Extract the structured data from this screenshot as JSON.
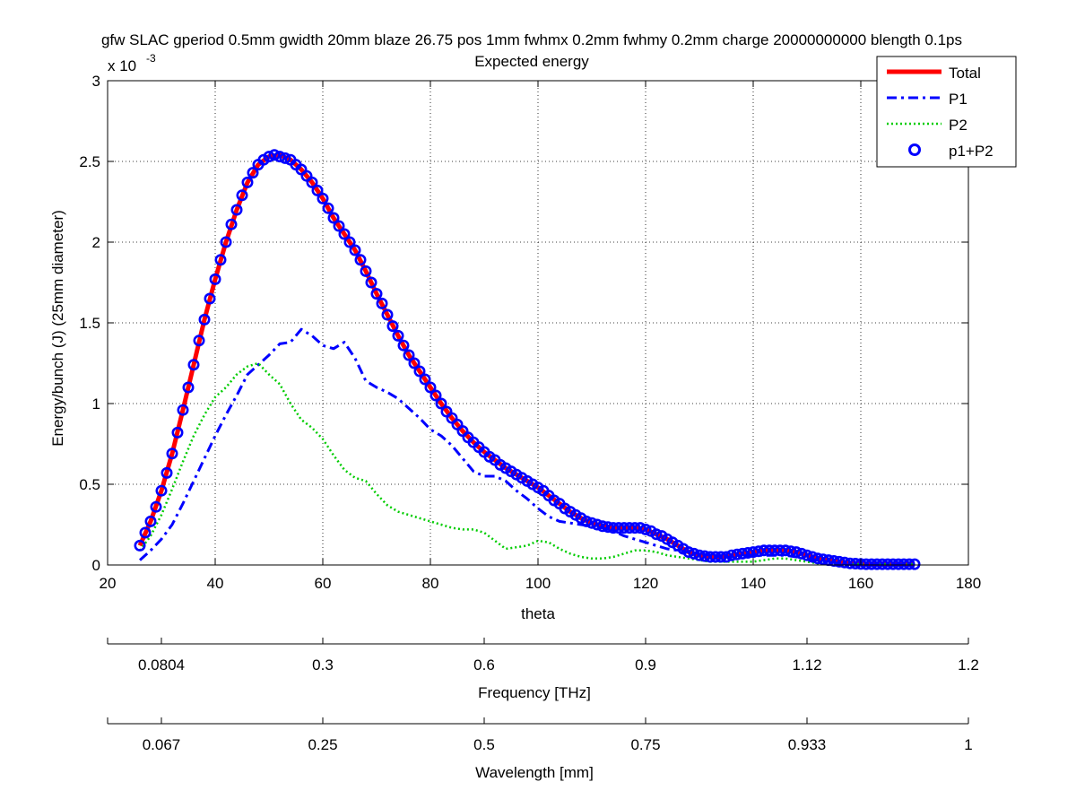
{
  "chart_data": {
    "type": "line",
    "title_line1": "gfw SLAC gperiod 0.5mm gwidth 20mm blaze 26.75 pos 1mm fwhmx 0.2mm fwhmy 0.2mm charge 20000000000 blength 0.1ps",
    "title_line2": "Expected energy",
    "xlabel": "theta",
    "ylabel": "Energy/bunch (J) (25mm diameter)",
    "y_multiplier_prefix": "x 10",
    "y_multiplier_exp": "-3",
    "xlim": [
      20,
      180
    ],
    "ylim": [
      0,
      3
    ],
    "y_scale_note": "values shown in units of 1e-3 J",
    "xticks": [
      20,
      40,
      60,
      80,
      100,
      120,
      140,
      160,
      180
    ],
    "xtick_labels": [
      "20",
      "40",
      "60",
      "80",
      "100",
      "120",
      "140",
      "160",
      "180"
    ],
    "yticks": [
      0,
      0.5,
      1,
      1.5,
      2,
      2.5,
      3
    ],
    "ytick_labels": [
      "0",
      "0.5",
      "1",
      "1.5",
      "2",
      "2.5",
      "3"
    ],
    "grid": true,
    "legend_position": "top-right",
    "series": [
      {
        "name": "Total",
        "color": "#ff0000",
        "style": "solid-thick",
        "x": [
          26,
          28,
          30,
          32,
          34,
          36,
          38,
          40,
          42,
          44,
          46,
          48,
          50,
          52,
          54,
          56,
          58,
          60,
          62,
          64,
          66,
          68,
          70,
          72,
          74,
          76,
          78,
          80,
          82,
          84,
          86,
          88,
          90,
          92,
          94,
          96,
          98,
          100,
          102,
          104,
          106,
          108,
          110,
          112,
          114,
          116,
          118,
          120,
          122,
          124,
          126,
          128,
          130,
          132,
          134,
          136,
          138,
          140,
          142,
          144,
          146,
          148,
          150,
          152,
          154,
          156,
          158,
          160,
          162,
          164,
          166,
          168,
          170
        ],
        "y": [
          0.12,
          0.27,
          0.46,
          0.69,
          0.96,
          1.24,
          1.52,
          1.77,
          2.0,
          2.2,
          2.37,
          2.48,
          2.53,
          2.54,
          2.51,
          2.45,
          2.37,
          2.27,
          2.15,
          2.05,
          1.95,
          1.82,
          1.68,
          1.55,
          1.42,
          1.3,
          1.2,
          1.1,
          1.0,
          0.91,
          0.83,
          0.76,
          0.7,
          0.65,
          0.6,
          0.56,
          0.52,
          0.48,
          0.43,
          0.38,
          0.33,
          0.29,
          0.26,
          0.24,
          0.23,
          0.23,
          0.23,
          0.22,
          0.19,
          0.16,
          0.12,
          0.08,
          0.06,
          0.05,
          0.05,
          0.06,
          0.07,
          0.08,
          0.09,
          0.09,
          0.09,
          0.08,
          0.06,
          0.04,
          0.03,
          0.02,
          0.01,
          0.005,
          0.005,
          0.005,
          0.005,
          0.005,
          0.005
        ]
      },
      {
        "name": "P1",
        "color": "#0000ff",
        "style": "dash-dot",
        "x": [
          26,
          28,
          30,
          32,
          34,
          36,
          38,
          40,
          42,
          44,
          46,
          48,
          50,
          52,
          54,
          56,
          58,
          60,
          62,
          64,
          66,
          68,
          70,
          72,
          74,
          76,
          78,
          80,
          82,
          84,
          86,
          88,
          90,
          92,
          94,
          96,
          98,
          100,
          102,
          104,
          106,
          108,
          110,
          112,
          114,
          116,
          118,
          120,
          122,
          124,
          126,
          128,
          130,
          132,
          134,
          136,
          138,
          140,
          142,
          144,
          146,
          148,
          150,
          152,
          154,
          156,
          158,
          160,
          162,
          164,
          166,
          168,
          170
        ],
        "y": [
          0.03,
          0.09,
          0.16,
          0.25,
          0.38,
          0.52,
          0.66,
          0.8,
          0.93,
          1.05,
          1.18,
          1.24,
          1.3,
          1.37,
          1.38,
          1.46,
          1.42,
          1.36,
          1.34,
          1.38,
          1.28,
          1.14,
          1.1,
          1.07,
          1.03,
          0.97,
          0.91,
          0.84,
          0.8,
          0.74,
          0.66,
          0.58,
          0.55,
          0.55,
          0.52,
          0.46,
          0.41,
          0.35,
          0.3,
          0.27,
          0.26,
          0.25,
          0.24,
          0.23,
          0.21,
          0.18,
          0.16,
          0.14,
          0.12,
          0.1,
          0.09,
          0.08,
          0.07,
          0.06,
          0.05,
          0.05,
          0.06,
          0.06,
          0.06,
          0.06,
          0.06,
          0.05,
          0.04,
          0.03,
          0.02,
          0.01,
          0.005,
          0.005,
          0.005,
          0.005,
          0.005,
          0.005,
          0.005
        ]
      },
      {
        "name": "P2",
        "color": "#00cc00",
        "style": "dotted",
        "x": [
          26,
          28,
          30,
          32,
          34,
          36,
          38,
          40,
          42,
          44,
          46,
          48,
          50,
          52,
          54,
          56,
          58,
          60,
          62,
          64,
          66,
          68,
          70,
          72,
          74,
          76,
          78,
          80,
          82,
          84,
          86,
          88,
          90,
          92,
          94,
          96,
          98,
          100,
          102,
          104,
          106,
          108,
          110,
          112,
          114,
          116,
          118,
          120,
          122,
          124,
          126,
          128,
          130,
          132,
          134,
          136,
          138,
          140,
          142,
          144,
          146,
          148,
          150,
          152,
          154,
          156,
          158,
          160,
          162,
          164,
          166,
          168,
          170
        ],
        "y": [
          0.09,
          0.18,
          0.31,
          0.47,
          0.64,
          0.8,
          0.93,
          1.04,
          1.1,
          1.18,
          1.23,
          1.25,
          1.18,
          1.12,
          1.0,
          0.9,
          0.85,
          0.78,
          0.68,
          0.59,
          0.54,
          0.52,
          0.44,
          0.37,
          0.33,
          0.31,
          0.29,
          0.27,
          0.25,
          0.23,
          0.22,
          0.22,
          0.2,
          0.15,
          0.1,
          0.11,
          0.12,
          0.15,
          0.14,
          0.1,
          0.07,
          0.05,
          0.04,
          0.04,
          0.05,
          0.07,
          0.09,
          0.09,
          0.08,
          0.06,
          0.05,
          0.04,
          0.03,
          0.02,
          0.02,
          0.02,
          0.02,
          0.02,
          0.03,
          0.04,
          0.04,
          0.03,
          0.02,
          0.01,
          0.005,
          0.005,
          0.005,
          0.005,
          0.005,
          0.005,
          0.005,
          0.005,
          0.005
        ]
      },
      {
        "name": "p1+P2",
        "color": "#0000ff",
        "style": "circle-markers",
        "x": [
          26,
          27,
          28,
          29,
          30,
          31,
          32,
          33,
          34,
          35,
          36,
          37,
          38,
          39,
          40,
          41,
          42,
          43,
          44,
          45,
          46,
          47,
          48,
          49,
          50,
          51,
          52,
          53,
          54,
          55,
          56,
          57,
          58,
          59,
          60,
          61,
          62,
          63,
          64,
          65,
          66,
          67,
          68,
          69,
          70,
          71,
          72,
          73,
          74,
          75,
          76,
          77,
          78,
          79,
          80,
          81,
          82,
          83,
          84,
          85,
          86,
          87,
          88,
          89,
          90,
          91,
          92,
          93,
          94,
          95,
          96,
          97,
          98,
          99,
          100,
          101,
          102,
          103,
          104,
          105,
          106,
          107,
          108,
          109,
          110,
          111,
          112,
          113,
          114,
          115,
          116,
          117,
          118,
          119,
          120,
          121,
          122,
          123,
          124,
          125,
          126,
          127,
          128,
          129,
          130,
          131,
          132,
          133,
          134,
          135,
          136,
          137,
          138,
          139,
          140,
          141,
          142,
          143,
          144,
          145,
          146,
          147,
          148,
          149,
          150,
          151,
          152,
          153,
          154,
          155,
          156,
          157,
          158,
          159,
          160,
          161,
          162,
          163,
          164,
          165,
          166,
          167,
          168,
          169,
          170
        ],
        "y": [
          0.12,
          0.2,
          0.27,
          0.36,
          0.46,
          0.57,
          0.69,
          0.82,
          0.96,
          1.1,
          1.24,
          1.39,
          1.52,
          1.65,
          1.77,
          1.89,
          2.0,
          2.11,
          2.2,
          2.29,
          2.37,
          2.43,
          2.48,
          2.51,
          2.53,
          2.54,
          2.53,
          2.52,
          2.51,
          2.48,
          2.45,
          2.41,
          2.37,
          2.32,
          2.27,
          2.21,
          2.15,
          2.1,
          2.05,
          2.0,
          1.95,
          1.89,
          1.82,
          1.75,
          1.68,
          1.62,
          1.55,
          1.48,
          1.42,
          1.36,
          1.3,
          1.25,
          1.2,
          1.15,
          1.1,
          1.05,
          1.0,
          0.95,
          0.91,
          0.87,
          0.83,
          0.79,
          0.76,
          0.73,
          0.7,
          0.67,
          0.65,
          0.62,
          0.6,
          0.58,
          0.56,
          0.54,
          0.52,
          0.5,
          0.48,
          0.46,
          0.43,
          0.4,
          0.38,
          0.35,
          0.33,
          0.31,
          0.29,
          0.27,
          0.26,
          0.25,
          0.24,
          0.235,
          0.23,
          0.23,
          0.23,
          0.23,
          0.23,
          0.23,
          0.22,
          0.21,
          0.19,
          0.18,
          0.16,
          0.14,
          0.12,
          0.1,
          0.08,
          0.07,
          0.06,
          0.055,
          0.05,
          0.05,
          0.05,
          0.05,
          0.06,
          0.065,
          0.07,
          0.075,
          0.08,
          0.085,
          0.09,
          0.09,
          0.09,
          0.09,
          0.09,
          0.085,
          0.08,
          0.07,
          0.06,
          0.05,
          0.04,
          0.035,
          0.03,
          0.025,
          0.02,
          0.015,
          0.01,
          0.008,
          0.006,
          0.005,
          0.005,
          0.005,
          0.005,
          0.005,
          0.005,
          0.005,
          0.005,
          0.005,
          0.005
        ]
      }
    ],
    "secondary_axes": [
      {
        "label": "Frequency [THz]",
        "ticks": [
          {
            "theta": 20,
            "label": ""
          },
          {
            "theta": 30,
            "label": "0.0804"
          },
          {
            "theta": 60,
            "label": "0.3"
          },
          {
            "theta": 90,
            "label": "0.6"
          },
          {
            "theta": 120,
            "label": "0.9"
          },
          {
            "theta": 150,
            "label": "1.12"
          },
          {
            "theta": 180,
            "label": "1.2"
          }
        ]
      },
      {
        "label": "Wavelength [mm]",
        "ticks": [
          {
            "theta": 20,
            "label": ""
          },
          {
            "theta": 30,
            "label": "0.067"
          },
          {
            "theta": 60,
            "label": "0.25"
          },
          {
            "theta": 90,
            "label": "0.5"
          },
          {
            "theta": 120,
            "label": "0.75"
          },
          {
            "theta": 150,
            "label": "0.933"
          },
          {
            "theta": 180,
            "label": "1"
          }
        ]
      }
    ]
  }
}
